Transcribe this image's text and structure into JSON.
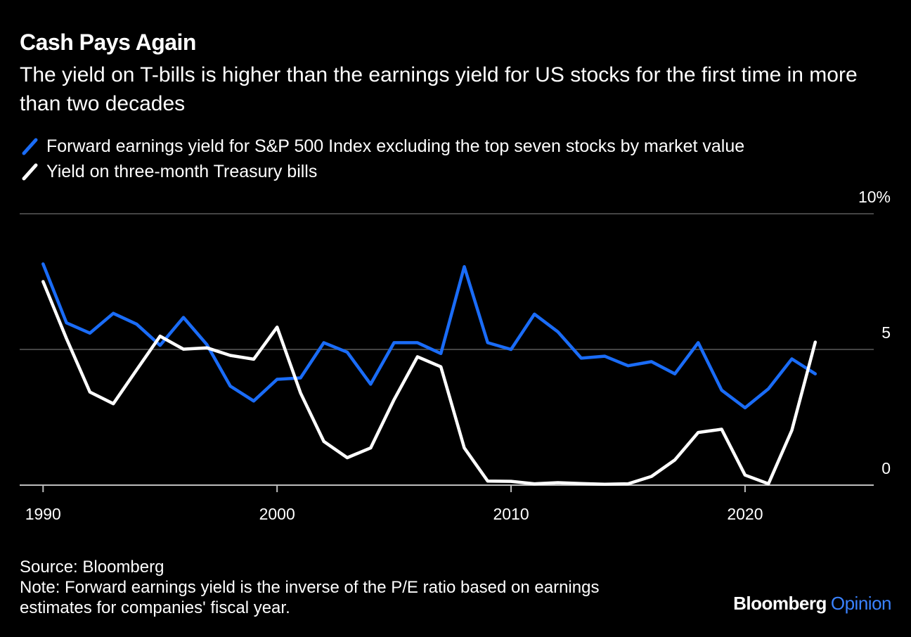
{
  "header": {
    "title": "Cash Pays Again",
    "subtitle": "The yield on T-bills is higher than the earnings yield for US stocks for the first time in more than two decades"
  },
  "legend": [
    {
      "label": "Forward earnings yield for S&P 500 Index excluding the top seven stocks by market value",
      "color": "#1a6cf7",
      "icon": "blue-line-swatch"
    },
    {
      "label": "Yield on three-month Treasury bills",
      "color": "#ffffff",
      "icon": "white-line-swatch"
    }
  ],
  "footer": {
    "source": "Source: Bloomberg",
    "note_line1": "Note: Forward earnings yield is the inverse of the P/E ratio based on earnings",
    "note_line2": "estimates for companies' fiscal year."
  },
  "brand": {
    "name": "Bloomberg",
    "sub": "Opinion",
    "sub_color": "#3a82ff"
  },
  "chart_data": {
    "type": "line",
    "title": "Cash Pays Again",
    "xlim": [
      1989,
      2025.5
    ],
    "ylim": [
      0,
      10
    ],
    "x_ticks": [
      1990,
      2000,
      2010,
      2020
    ],
    "x_tick_labels": [
      "1990",
      "2000",
      "2010",
      "2020"
    ],
    "y_ticks": [
      0,
      5,
      10
    ],
    "y_tick_labels": [
      "0",
      "5",
      "10%"
    ],
    "grid": true,
    "y_axis_side": "right",
    "legend_position": "top-left",
    "series": [
      {
        "name": "Forward earnings yield for S&P 500 Index excluding the top seven stocks by market value",
        "color": "#1a6cf7",
        "x": [
          1990,
          1991,
          1992,
          1993,
          1994,
          1995,
          1996,
          1997,
          1998,
          1999,
          2000,
          2001,
          2002,
          2003,
          2004,
          2005,
          2006,
          2007,
          2008,
          2009,
          2010,
          2011,
          2012,
          2013,
          2014,
          2015,
          2016,
          2017,
          2018,
          2019,
          2020,
          2021,
          2022,
          2023
        ],
        "y": [
          8.15,
          5.98,
          5.6,
          6.33,
          5.93,
          5.15,
          6.18,
          5.18,
          3.65,
          3.1,
          3.9,
          3.95,
          5.25,
          4.9,
          3.72,
          5.25,
          5.25,
          4.85,
          8.05,
          5.25,
          5.0,
          6.3,
          5.65,
          4.68,
          4.75,
          4.4,
          4.55,
          4.1,
          5.25,
          3.5,
          2.85,
          3.55,
          4.65,
          4.1
        ]
      },
      {
        "name": "Yield on three-month Treasury bills",
        "color": "#ffffff",
        "x": [
          1990,
          1991,
          1992,
          1993,
          1994,
          1995,
          1996,
          1997,
          1998,
          1999,
          2000,
          2001,
          2002,
          2003,
          2004,
          2005,
          2006,
          2007,
          2008,
          2009,
          2010,
          2011,
          2012,
          2013,
          2014,
          2015,
          2016,
          2017,
          2018,
          2019,
          2020,
          2021,
          2022,
          2023
        ],
        "y": [
          7.5,
          5.4,
          3.43,
          3.0,
          4.25,
          5.49,
          5.01,
          5.06,
          4.78,
          4.64,
          5.82,
          3.4,
          1.61,
          1.01,
          1.37,
          3.15,
          4.73,
          4.36,
          1.37,
          0.15,
          0.14,
          0.05,
          0.09,
          0.06,
          0.03,
          0.05,
          0.32,
          0.93,
          1.94,
          2.06,
          0.37,
          0.05,
          2.02,
          5.27
        ]
      }
    ]
  }
}
